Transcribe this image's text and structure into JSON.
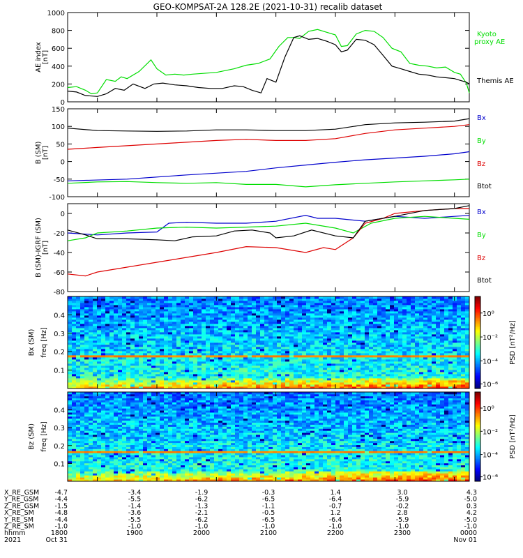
{
  "title": "GEO-KOMPSAT-2A 128.2E (2021-10-31) recalib dataset",
  "chart_data": [
    {
      "type": "line",
      "panel": "ae",
      "ylabel": [
        "AE index",
        "[nT]"
      ],
      "ylim": [
        0,
        1000
      ],
      "yticks": [
        0,
        200,
        400,
        600,
        800,
        1000
      ],
      "x_range_hours": [
        17.5,
        24.25
      ],
      "series": [
        {
          "name": "Kyoto proxy AE",
          "color": "#00dd00",
          "x": [
            17.5,
            17.65,
            17.8,
            17.9,
            18.0,
            18.15,
            18.3,
            18.4,
            18.5,
            18.7,
            18.9,
            19.0,
            19.15,
            19.3,
            19.45,
            19.6,
            20.0,
            20.3,
            20.5,
            20.7,
            20.9,
            21.05,
            21.2,
            21.3,
            21.4,
            21.55,
            21.7,
            21.85,
            22.0,
            22.1,
            22.2,
            22.35,
            22.5,
            22.65,
            22.8,
            22.95,
            23.1,
            23.25,
            23.4,
            23.55,
            23.7,
            23.85,
            24.0,
            24.1,
            24.2,
            24.25
          ],
          "values": [
            160,
            170,
            130,
            90,
            100,
            250,
            230,
            280,
            260,
            340,
            470,
            370,
            300,
            310,
            300,
            310,
            330,
            370,
            410,
            430,
            480,
            620,
            720,
            720,
            710,
            790,
            810,
            780,
            750,
            620,
            630,
            760,
            800,
            790,
            720,
            600,
            560,
            430,
            410,
            400,
            380,
            390,
            330,
            310,
            210,
            100
          ]
        },
        {
          "name": "Themis AE",
          "color": "#000000",
          "x": [
            17.5,
            17.65,
            17.8,
            18.0,
            18.15,
            18.3,
            18.45,
            18.6,
            18.8,
            18.95,
            19.1,
            19.3,
            19.5,
            19.7,
            19.9,
            20.1,
            20.3,
            20.45,
            20.6,
            20.75,
            20.85,
            21.0,
            21.15,
            21.3,
            21.4,
            21.55,
            21.7,
            21.85,
            22.0,
            22.1,
            22.2,
            22.35,
            22.5,
            22.65,
            22.8,
            22.95,
            23.1,
            23.25,
            23.4,
            23.55,
            23.7,
            23.85,
            24.0,
            24.1,
            24.2,
            24.25
          ],
          "values": [
            120,
            110,
            70,
            60,
            90,
            150,
            130,
            200,
            150,
            200,
            210,
            190,
            180,
            160,
            150,
            150,
            180,
            170,
            130,
            100,
            260,
            220,
            500,
            720,
            740,
            700,
            710,
            680,
            640,
            560,
            580,
            700,
            690,
            640,
            520,
            400,
            370,
            340,
            310,
            300,
            280,
            270,
            260,
            240,
            220,
            200
          ]
        }
      ]
    },
    {
      "type": "line",
      "panel": "b_sm",
      "ylabel": [
        "B (SM)",
        "[nT]"
      ],
      "ylim": [
        -100,
        150
      ],
      "yticks": [
        -100,
        -50,
        0,
        50,
        100,
        150
      ],
      "series": [
        {
          "name": "Bx",
          "color": "#0000cc",
          "x": [
            17.5,
            18.5,
            19.5,
            20.5,
            21.0,
            21.5,
            22.0,
            22.5,
            23.0,
            23.5,
            24.0,
            24.25
          ],
          "values": [
            -55,
            -50,
            -38,
            -28,
            -18,
            -10,
            -2,
            5,
            10,
            15,
            22,
            28
          ]
        },
        {
          "name": "By",
          "color": "#00dd00",
          "x": [
            17.5,
            18.0,
            18.5,
            19.0,
            19.5,
            20.0,
            20.5,
            21.0,
            21.5,
            22.0,
            22.5,
            23.0,
            23.5,
            24.0,
            24.25
          ],
          "values": [
            -62,
            -58,
            -57,
            -60,
            -62,
            -60,
            -65,
            -65,
            -72,
            -66,
            -62,
            -58,
            -55,
            -52,
            -50
          ]
        },
        {
          "name": "Bz",
          "color": "#dd0000",
          "x": [
            17.5,
            18.0,
            18.5,
            19.0,
            19.5,
            20.0,
            20.5,
            21.0,
            21.5,
            22.0,
            22.5,
            23.0,
            23.5,
            24.0,
            24.25
          ],
          "values": [
            35,
            40,
            45,
            50,
            55,
            60,
            63,
            60,
            60,
            65,
            80,
            90,
            95,
            100,
            105
          ]
        },
        {
          "name": "Btot",
          "color": "#000000",
          "x": [
            17.5,
            18.0,
            18.5,
            19.0,
            19.5,
            20.0,
            20.5,
            21.0,
            21.5,
            22.0,
            22.5,
            23.0,
            23.5,
            24.0,
            24.25
          ],
          "values": [
            95,
            88,
            87,
            86,
            87,
            90,
            90,
            88,
            88,
            92,
            105,
            110,
            112,
            115,
            122
          ]
        }
      ]
    },
    {
      "type": "line",
      "panel": "b_minus_igrf",
      "ylabel": [
        "B (SM)-IGRF (SM)",
        "[nT]"
      ],
      "ylim": [
        -80,
        10
      ],
      "yticks": [
        -80,
        -60,
        -40,
        -20,
        0
      ],
      "series": [
        {
          "name": "Bx",
          "color": "#0000cc",
          "x": [
            17.5,
            18.0,
            18.5,
            19.0,
            19.2,
            19.5,
            20.0,
            20.5,
            21.0,
            21.5,
            21.7,
            22.0,
            22.5,
            23.0,
            23.5,
            24.0,
            24.25
          ],
          "values": [
            -20,
            -22,
            -20,
            -19,
            -10,
            -9,
            -10,
            -10,
            -8,
            -2,
            -5,
            -5,
            -8,
            -3,
            -5,
            -3,
            -2
          ]
        },
        {
          "name": "By",
          "color": "#00dd00",
          "x": [
            17.5,
            17.8,
            18.0,
            18.5,
            19.0,
            19.5,
            20.0,
            20.5,
            21.0,
            21.5,
            22.0,
            22.3,
            22.6,
            23.0,
            23.5,
            24.0,
            24.25
          ],
          "values": [
            -28,
            -25,
            -20,
            -18,
            -15,
            -14,
            -15,
            -14,
            -13,
            -10,
            -15,
            -20,
            -10,
            -5,
            -3,
            -5,
            -6
          ]
        },
        {
          "name": "Bz",
          "color": "#dd0000",
          "x": [
            17.5,
            17.8,
            18.0,
            18.5,
            19.0,
            19.5,
            20.0,
            20.5,
            21.0,
            21.5,
            21.8,
            22.0,
            22.3,
            22.5,
            22.8,
            23.0,
            23.5,
            24.0,
            24.25
          ],
          "values": [
            -62,
            -64,
            -60,
            -55,
            -50,
            -45,
            -40,
            -34,
            -35,
            -40,
            -35,
            -37,
            -25,
            -10,
            -5,
            0,
            3,
            5,
            5
          ]
        },
        {
          "name": "Btot",
          "color": "#000000",
          "x": [
            17.5,
            17.8,
            18.0,
            18.5,
            19.0,
            19.3,
            19.6,
            20.0,
            20.3,
            20.6,
            20.9,
            21.0,
            21.3,
            21.6,
            22.0,
            22.3,
            22.5,
            23.0,
            23.5,
            24.0,
            24.25
          ],
          "values": [
            -17,
            -22,
            -26,
            -26,
            -27,
            -28,
            -24,
            -23,
            -18,
            -17,
            -20,
            -25,
            -23,
            -17,
            -23,
            -25,
            -8,
            -3,
            3,
            5,
            8
          ]
        }
      ]
    },
    {
      "type": "heatmap",
      "panel": "bx_spectrogram",
      "ylabel": [
        "Bx (SM)",
        "freq [Hz]"
      ],
      "ylim": [
        0,
        0.5
      ],
      "yticks": [
        0.1,
        0.2,
        0.3,
        0.4
      ],
      "colorbar_label": "PSD [nT²/Hz]",
      "colorbar_ticks": [
        "10⁰",
        "10⁻²",
        "10⁻⁴",
        "10⁻⁶"
      ],
      "line_frequency_hz": 0.175
    },
    {
      "type": "heatmap",
      "panel": "bz_spectrogram",
      "ylabel": [
        "Bz (SM)",
        "freq [Hz]"
      ],
      "ylim": [
        0,
        0.5
      ],
      "yticks": [
        0.1,
        0.2,
        0.3,
        0.4
      ],
      "colorbar_label": "PSD [nT²/Hz]",
      "colorbar_ticks": [
        "10⁰",
        "10⁻²",
        "10⁻⁴",
        "10⁻⁶"
      ],
      "line_frequency_hz": 0.165
    }
  ],
  "ephemeris": {
    "labels": [
      "X_RE_GSM",
      "Y_RE_GSM",
      "Z_RE_GSM",
      "X_RE_SM",
      "Y_RE_SM",
      "Z_RE_SM",
      "hhmm",
      "2021"
    ],
    "columns": [
      [
        "-4.7",
        "-4.4",
        "-1.5",
        "-4.8",
        "-4.4",
        "-1.0",
        "1800",
        "Oct 31"
      ],
      [
        "-3.4",
        "-5.5",
        "-1.4",
        "-3.6",
        "-5.5",
        "-1.0",
        "1900",
        ""
      ],
      [
        "-1.9",
        "-6.2",
        "-1.3",
        "-2.1",
        "-6.2",
        "-1.0",
        "2000",
        ""
      ],
      [
        "-0.3",
        "-6.5",
        "-1.1",
        "-0.5",
        "-6.5",
        "-1.0",
        "2100",
        ""
      ],
      [
        "1.4",
        "-6.4",
        "-0.7",
        "1.2",
        "-6.4",
        "-1.0",
        "2200",
        ""
      ],
      [
        "3.0",
        "-5.9",
        "-0.2",
        "2.8",
        "-5.9",
        "-1.0",
        "2300",
        ""
      ],
      [
        "4.3",
        "-5.0",
        "0.3",
        "4.2",
        "-5.0",
        "-1.0",
        "0000",
        "Nov 01"
      ]
    ]
  },
  "legends": {
    "ae": [
      "Kyoto",
      "proxy AE",
      "Themis AE"
    ],
    "components": [
      "Bx",
      "By",
      "Bz",
      "Btot"
    ]
  }
}
